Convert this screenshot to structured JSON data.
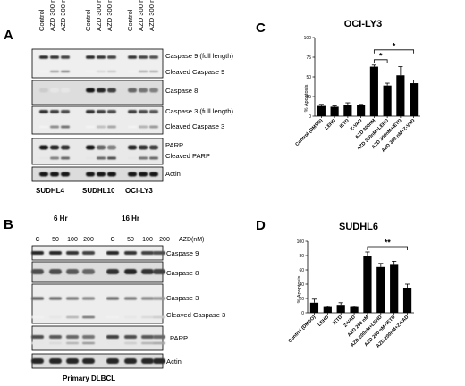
{
  "panels": {
    "A": {
      "letter": "A",
      "lanes": [
        "Control",
        "AZD 300 nM",
        "AZD 300 nM",
        "Control",
        "AZD 300 nM",
        "AZD 300 nM",
        "Control",
        "AZD 300 nM",
        "AZD 300 nM"
      ],
      "bands": [
        "Caspase 9 (full length)",
        "Cleaved Caspase 9",
        "Caspase 8",
        "Caspase 3 (full length)",
        "Cleaved Caspase 3",
        "PARP",
        "Cleaved PARP",
        "Actin"
      ],
      "cell_lines": [
        "SUDHL4",
        "SUDHL10",
        "OCI-LY3"
      ]
    },
    "B": {
      "letter": "B",
      "times": [
        "6 Hr",
        "16 Hr"
      ],
      "doses": [
        "C",
        "50",
        "100",
        "200",
        "C",
        "50",
        "100",
        "200"
      ],
      "dose_unit": "AZD(nM)",
      "bands": [
        "Caspase 9",
        "Caspase 8",
        "Caspase 3",
        "Cleaved Caspase 3",
        "PARP",
        "Actin"
      ],
      "sample": "Primary DLBCL"
    },
    "C": {
      "letter": "C"
    },
    "D": {
      "letter": "D"
    }
  },
  "chart_data": [
    {
      "type": "bar",
      "title": "OCI-LY3",
      "ylabel": "% Apoptosis",
      "ylim": [
        0,
        100
      ],
      "yticks": [
        "0",
        "25",
        "50",
        "75",
        "100"
      ],
      "categories": [
        "Control (DMSO)",
        "LEHD",
        "IETD",
        "Z-VAD",
        "AZD 300nM",
        "AZD 300nM+LEHD",
        "AZD 300nM+IETD",
        "AZD 300 nM+Z-VAD"
      ],
      "values": [
        13,
        12,
        14,
        14,
        63,
        39,
        52,
        42
      ],
      "errors": [
        2,
        1,
        3,
        1,
        2,
        3,
        11,
        4
      ],
      "bar_color": "#000000",
      "significance": [
        {
          "from": 4,
          "to": 5,
          "label": "*"
        },
        {
          "from": 4,
          "to": 7,
          "label": "*"
        }
      ]
    },
    {
      "type": "bar",
      "title": "SUDHL6",
      "ylabel": "% Apoptosis",
      "ylim": [
        0,
        100
      ],
      "yticks": [
        "0",
        "20",
        "40",
        "60",
        "80",
        "100"
      ],
      "categories": [
        "Control (DMSO)",
        "LEHD",
        "IETD",
        "Z-VAD",
        "AZD 200 nM",
        "AZD 200nM+LEHD",
        "AZD 200 nM+IETD",
        "AZD 200nM+Z-VAD"
      ],
      "values": [
        14,
        8,
        11,
        8,
        79,
        64,
        67,
        35
      ],
      "errors": [
        5,
        1,
        3,
        1,
        6,
        5,
        5,
        5
      ],
      "bar_color": "#000000",
      "significance": [
        {
          "from": 4,
          "to": 7,
          "label": "**"
        }
      ]
    }
  ]
}
